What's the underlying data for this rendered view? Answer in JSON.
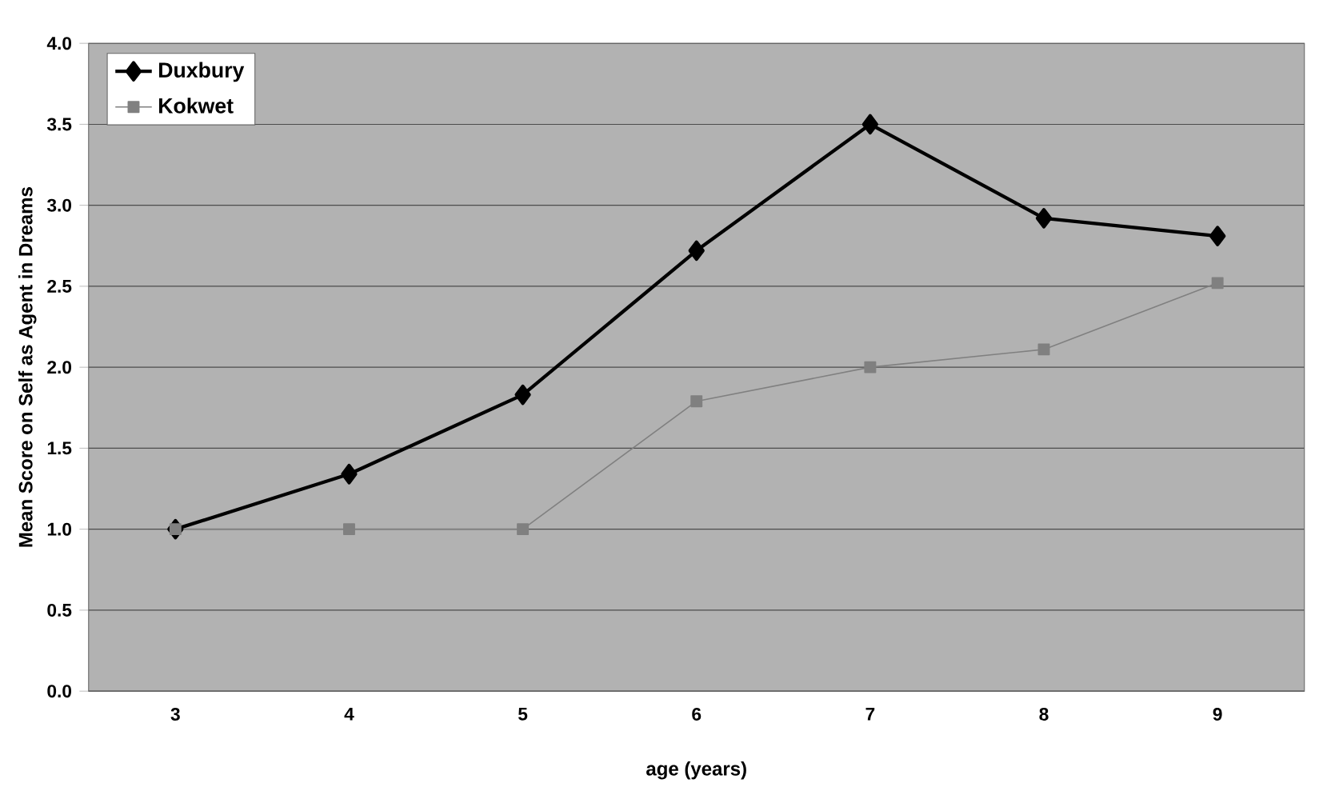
{
  "chart_data": {
    "type": "line",
    "xlabel": "age (years)",
    "ylabel": "Mean Score on Self as Agent in Dreams",
    "categories": [
      "3",
      "4",
      "5",
      "6",
      "7",
      "8",
      "9"
    ],
    "series": [
      {
        "name": "Duxbury",
        "color": "#000000",
        "marker": "diamond",
        "values": [
          1.0,
          1.34,
          1.83,
          2.72,
          3.5,
          2.92,
          2.81
        ]
      },
      {
        "name": "Kokwet",
        "color": "#808080",
        "marker": "square",
        "values": [
          1.0,
          1.0,
          1.0,
          1.79,
          2.0,
          2.11,
          2.52
        ]
      }
    ],
    "ylim": [
      0,
      4
    ],
    "yticks": [
      {
        "value": 0,
        "label": "0.0"
      },
      {
        "value": 0.5,
        "label": "0.5"
      },
      {
        "value": 1,
        "label": "1.0"
      },
      {
        "value": 1.5,
        "label": "1.5"
      },
      {
        "value": 2,
        "label": "2.0"
      },
      {
        "value": 2.5,
        "label": "2.5"
      },
      {
        "value": 3,
        "label": "3.0"
      },
      {
        "value": 3.5,
        "label": "3.5"
      },
      {
        "value": 4,
        "label": "4.0"
      }
    ],
    "grid": "y",
    "legend": "top left",
    "line_style": "solid"
  }
}
